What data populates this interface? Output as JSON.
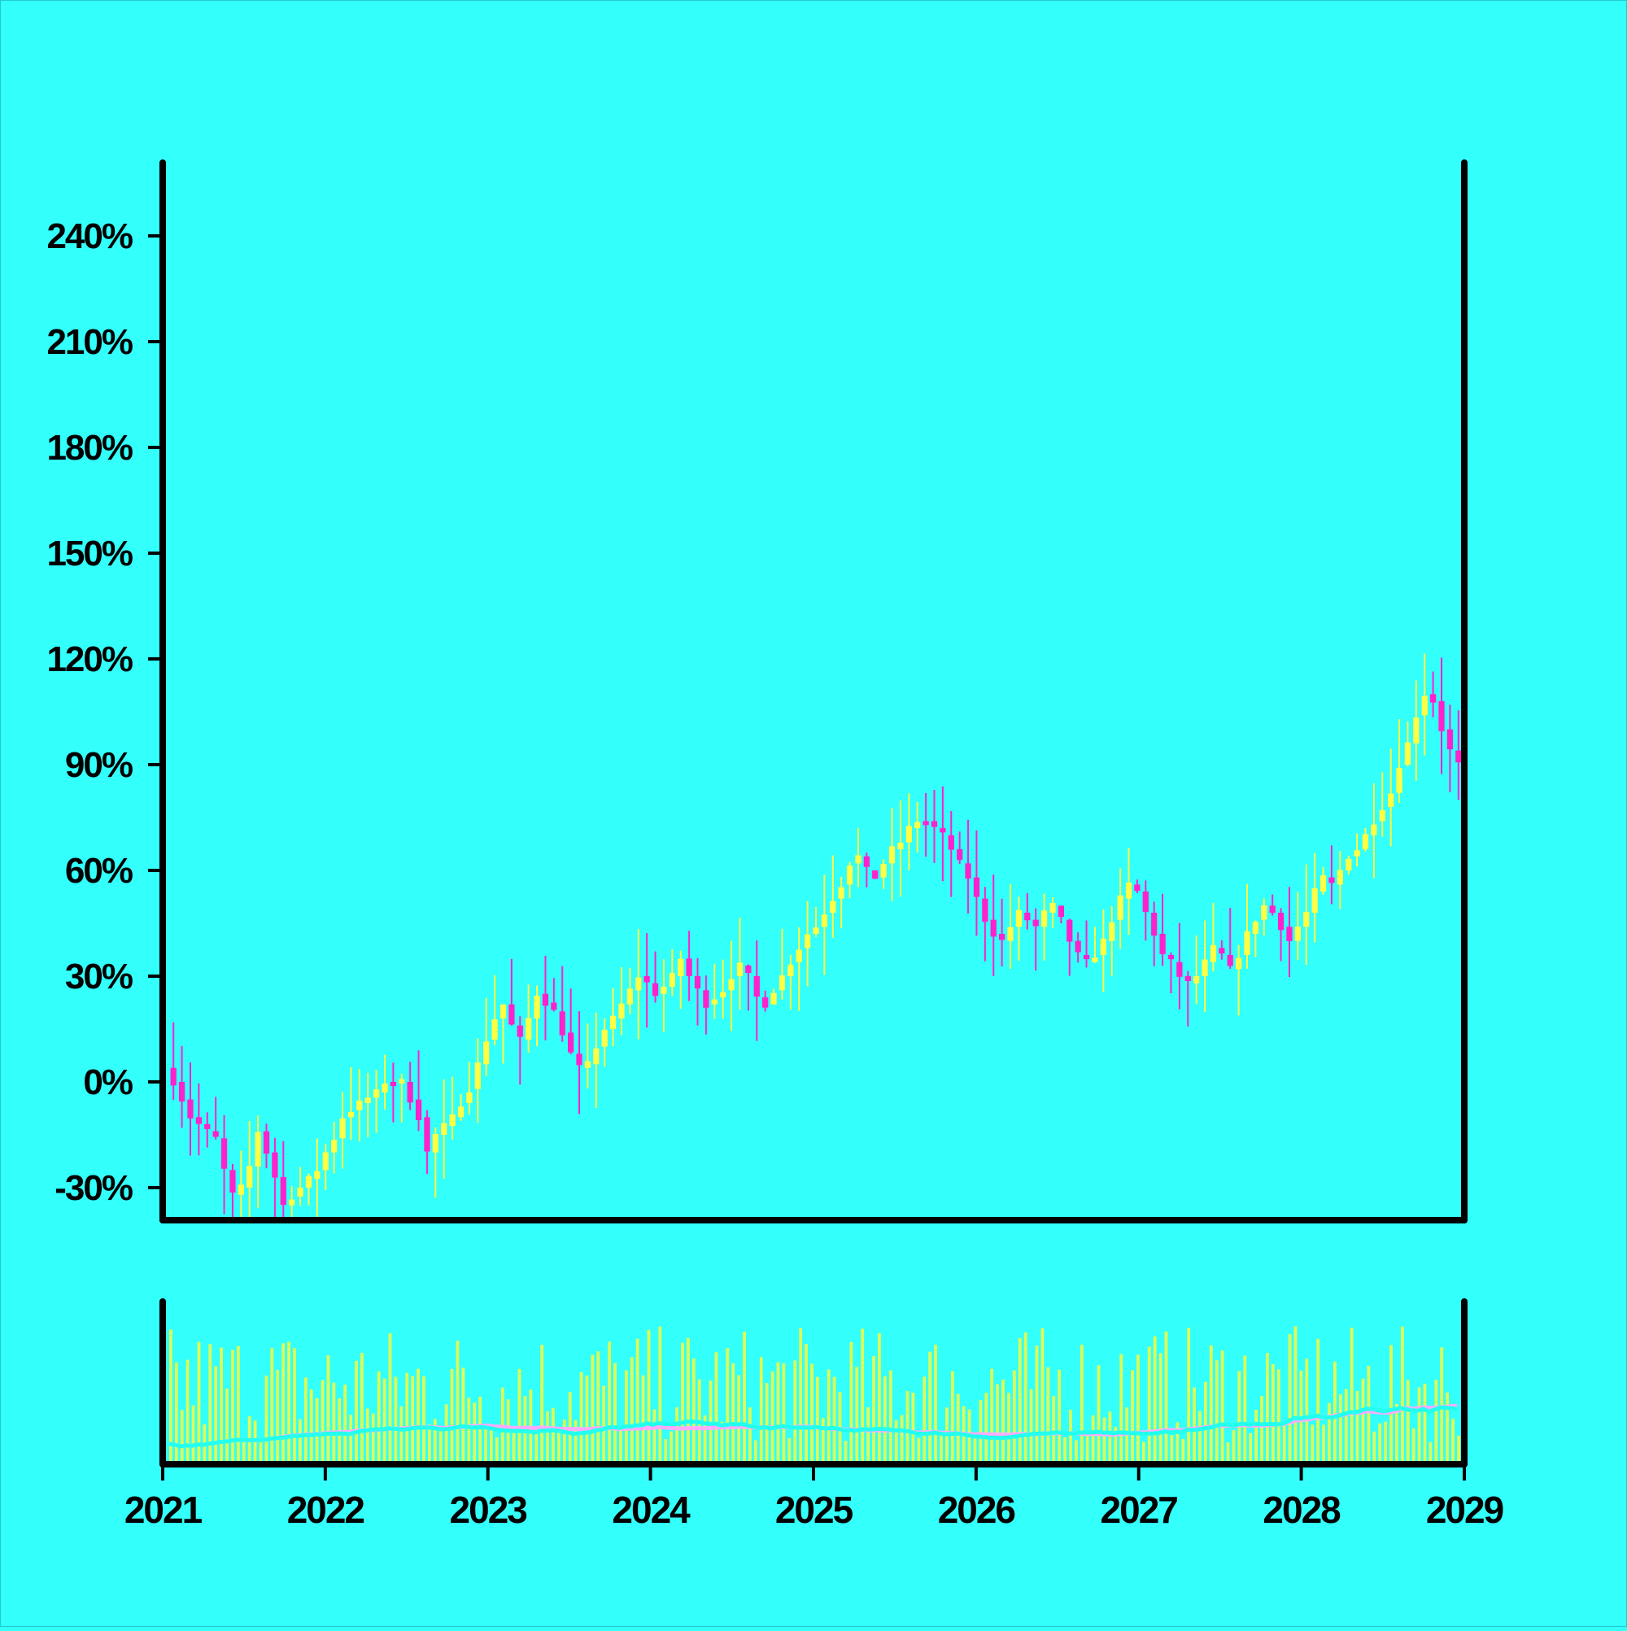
{
  "chart_data": {
    "type": "candlestick",
    "x_start": "2021-01-01",
    "x_end": "2029-01-01",
    "x_ticks": [
      "2021",
      "2022",
      "2023",
      "2024",
      "2025",
      "2026",
      "2027",
      "2028",
      "2029"
    ],
    "y_ticks": [
      "-30%",
      "0%",
      "30%",
      "60%",
      "90%",
      "120%",
      "150%",
      "180%",
      "210%",
      "240%"
    ],
    "ylim": [
      -39,
      260
    ],
    "colors": {
      "background": "#33FFFB",
      "up": "#FFFF44",
      "down": "#FF22CC",
      "volume": "#DDFF55",
      "ma_fast": "#22FFEE",
      "ma_slow": "#FFAAFF",
      "axis": "#000000"
    },
    "series": [
      {
        "type": "candles",
        "interval": "1 month",
        "close_path": [
          [
            0,
            0
          ],
          [
            2,
            -10
          ],
          [
            3,
            -12
          ],
          [
            5,
            -16
          ],
          [
            6,
            -25
          ],
          [
            7,
            -32
          ],
          [
            8,
            -30
          ],
          [
            9,
            -24
          ],
          [
            10,
            -14
          ],
          [
            11,
            -20
          ],
          [
            12,
            -27
          ],
          [
            13,
            -35
          ],
          [
            15,
            -30
          ],
          [
            17,
            -25
          ],
          [
            18,
            -20
          ],
          [
            19,
            -16
          ],
          [
            20,
            -10
          ],
          [
            22,
            -6
          ],
          [
            24,
            -3
          ],
          [
            25,
            0
          ],
          [
            27,
            0
          ],
          [
            29,
            -10
          ],
          [
            30,
            -20
          ],
          [
            31,
            -15
          ],
          [
            33,
            -10
          ],
          [
            34,
            -6
          ],
          [
            35,
            -2
          ],
          [
            36,
            5
          ],
          [
            37,
            12
          ],
          [
            38,
            18
          ],
          [
            39,
            22
          ],
          [
            40,
            16
          ],
          [
            41,
            12
          ],
          [
            42,
            18
          ],
          [
            43,
            25
          ],
          [
            45,
            20
          ],
          [
            46,
            14
          ],
          [
            47,
            8
          ],
          [
            48,
            4
          ],
          [
            49,
            5
          ],
          [
            50,
            10
          ],
          [
            51,
            15
          ],
          [
            52,
            18
          ],
          [
            53,
            22
          ],
          [
            54,
            26
          ],
          [
            55,
            30
          ],
          [
            56,
            28
          ],
          [
            57,
            25
          ],
          [
            58,
            27
          ],
          [
            59,
            30
          ],
          [
            60,
            35
          ],
          [
            61,
            30
          ],
          [
            62,
            26
          ],
          [
            63,
            22
          ],
          [
            64,
            24
          ],
          [
            65,
            26
          ],
          [
            66,
            30
          ],
          [
            67,
            33
          ],
          [
            68,
            30
          ],
          [
            69,
            24
          ],
          [
            70,
            22
          ],
          [
            71,
            26
          ],
          [
            72,
            30
          ],
          [
            73,
            34
          ],
          [
            74,
            38
          ],
          [
            75,
            42
          ],
          [
            76,
            44
          ],
          [
            77,
            48
          ],
          [
            78,
            52
          ],
          [
            79,
            56
          ],
          [
            80,
            62
          ],
          [
            81,
            64
          ],
          [
            82,
            60
          ],
          [
            83,
            58
          ],
          [
            84,
            62
          ],
          [
            85,
            66
          ],
          [
            86,
            68
          ],
          [
            87,
            72
          ],
          [
            88,
            74
          ],
          [
            89,
            74
          ],
          [
            90,
            72
          ],
          [
            91,
            70
          ],
          [
            92,
            66
          ],
          [
            93,
            62
          ],
          [
            94,
            58
          ],
          [
            95,
            52
          ],
          [
            96,
            46
          ],
          [
            97,
            42
          ],
          [
            98,
            40
          ],
          [
            99,
            44
          ],
          [
            100,
            48
          ],
          [
            101,
            46
          ],
          [
            102,
            44
          ],
          [
            103,
            48
          ],
          [
            104,
            50
          ],
          [
            105,
            46
          ],
          [
            106,
            40
          ],
          [
            107,
            36
          ],
          [
            108,
            34
          ],
          [
            109,
            36
          ],
          [
            110,
            40
          ],
          [
            111,
            46
          ],
          [
            112,
            52
          ],
          [
            113,
            56
          ],
          [
            114,
            54
          ],
          [
            115,
            48
          ],
          [
            116,
            42
          ],
          [
            117,
            36
          ],
          [
            118,
            34
          ],
          [
            119,
            30
          ],
          [
            120,
            28
          ],
          [
            121,
            30
          ],
          [
            122,
            34
          ],
          [
            123,
            38
          ],
          [
            124,
            36
          ],
          [
            125,
            32
          ],
          [
            126,
            36
          ],
          [
            127,
            42
          ],
          [
            128,
            46
          ],
          [
            129,
            50
          ],
          [
            130,
            48
          ],
          [
            131,
            44
          ],
          [
            132,
            40
          ],
          [
            133,
            44
          ],
          [
            134,
            48
          ],
          [
            135,
            54
          ],
          [
            136,
            58
          ],
          [
            137,
            56
          ],
          [
            138,
            60
          ],
          [
            139,
            64
          ],
          [
            140,
            66
          ],
          [
            141,
            70
          ],
          [
            142,
            74
          ],
          [
            143,
            78
          ],
          [
            144,
            82
          ],
          [
            145,
            90
          ],
          [
            146,
            96
          ],
          [
            147,
            104
          ],
          [
            148,
            110
          ],
          [
            149,
            108
          ],
          [
            150,
            100
          ],
          [
            151,
            94
          ],
          [
            152,
            90
          ]
        ]
      },
      {
        "type": "volume",
        "name": "",
        "scale": "relative"
      },
      {
        "type": "line",
        "name": "",
        "role": "fast moving average of volume"
      },
      {
        "type": "line",
        "name": "",
        "role": "slow moving average of volume"
      }
    ]
  }
}
